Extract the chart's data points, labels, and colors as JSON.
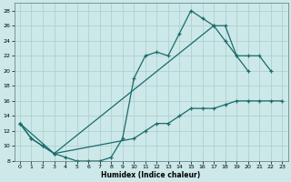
{
  "xlabel": "Humidex (Indice chaleur)",
  "bg_color": "#cce8e8",
  "line_color": "#1a6b6b",
  "grid_color": "#aacccc",
  "xlim": [
    -0.5,
    23.5
  ],
  "ylim": [
    8,
    29
  ],
  "xticks": [
    0,
    1,
    2,
    3,
    4,
    5,
    6,
    7,
    8,
    9,
    10,
    11,
    12,
    13,
    14,
    15,
    16,
    17,
    18,
    19,
    20,
    21,
    22,
    23
  ],
  "yticks": [
    8,
    10,
    12,
    14,
    16,
    18,
    20,
    22,
    24,
    26,
    28
  ],
  "line1_x": [
    0,
    1,
    2,
    3,
    4,
    5,
    6,
    7,
    8,
    9,
    10,
    11,
    12,
    13,
    14,
    15,
    16,
    17,
    18,
    19,
    20
  ],
  "line1_y": [
    13,
    11,
    10,
    9,
    8.5,
    8,
    8,
    8,
    8.5,
    11,
    19,
    22,
    22.5,
    22,
    25,
    28,
    27,
    26,
    24,
    22,
    20
  ],
  "line2_x": [
    0,
    3,
    17,
    18,
    19,
    20,
    21,
    22
  ],
  "line2_y": [
    13,
    9,
    26,
    26,
    22,
    22,
    22,
    20
  ],
  "line3_x": [
    0,
    1,
    2,
    3,
    10,
    11,
    12,
    13,
    14,
    15,
    16,
    17,
    18,
    19,
    20,
    21,
    22,
    23
  ],
  "line3_y": [
    13,
    11,
    10,
    9,
    11,
    12,
    13,
    13,
    14,
    15,
    15,
    15,
    15.5,
    16,
    16,
    16,
    16,
    16
  ]
}
